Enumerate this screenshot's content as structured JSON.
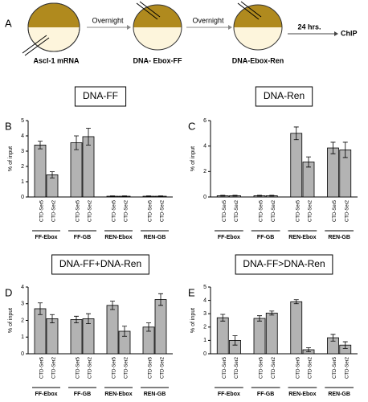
{
  "diagram": {
    "panel": "A",
    "injection": "Ascl-1 mRNA",
    "step1": "Overnight",
    "cell2": "DNA- Ebox-FF",
    "step2": "Overnight",
    "cell3": "DNA-Ebox-Ren",
    "step3": "24 hrs.",
    "result": "ChIP"
  },
  "chart_data": [
    {
      "type": "bar",
      "panel": "B",
      "title": "DNA-FF",
      "ylabel": "% of input",
      "color": "#b3b3b3",
      "groups": [
        "FF-Ebox",
        "FF-GB",
        "REN-Ebox",
        "REN-GB"
      ],
      "categories": [
        "CTD-Ser5",
        "CTD-Ser2",
        "CTD-Ser5",
        "CTD-Ser2",
        "CTD-Ser5",
        "CTD-Ser2",
        "CTD-Ser5",
        "CTD-Ser2"
      ],
      "values": [
        3.4,
        1.45,
        3.55,
        3.95,
        0.05,
        0.05,
        0.05,
        0.05
      ],
      "errors": [
        0.25,
        0.2,
        0.45,
        0.55,
        0.02,
        0.02,
        0.02,
        0.02
      ],
      "ylim": [
        0,
        5
      ],
      "yticks": [
        0,
        1,
        2,
        3,
        4,
        5
      ]
    },
    {
      "type": "bar",
      "panel": "C",
      "title": "DNA-Ren",
      "ylabel": "% of input",
      "color": "#b3b3b3",
      "groups": [
        "FF-Ebox",
        "FF-GB",
        "REN-Ebox",
        "REN-GB"
      ],
      "categories": [
        "CTD-Ser5",
        "CTD-Ser2",
        "CTD-Ser5",
        "CTD-Ser2",
        "CTD-Ser5",
        "CTD-Ser2",
        "CTD-Ser5",
        "CTD-Ser2"
      ],
      "values": [
        0.1,
        0.1,
        0.1,
        0.1,
        5.0,
        2.75,
        3.85,
        3.7
      ],
      "errors": [
        0.03,
        0.03,
        0.03,
        0.03,
        0.5,
        0.4,
        0.45,
        0.6
      ],
      "ylim": [
        0,
        6
      ],
      "yticks": [
        0,
        2,
        4,
        6
      ]
    },
    {
      "type": "bar",
      "panel": "D",
      "title": "DNA-FF+DNA-Ren",
      "ylabel": "% of input",
      "color": "#b3b3b3",
      "groups": [
        "FF-Ebox",
        "FF-GB",
        "REN-Ebox",
        "REN-GB"
      ],
      "categories": [
        "CTD-Ser5",
        "CTD-Ser2",
        "CTD-Ser5",
        "CTD-Ser2",
        "CTD-Ser5",
        "CTD-Ser2",
        "CTD-Ser5",
        "CTD-Ser2"
      ],
      "values": [
        2.7,
        2.1,
        2.05,
        2.1,
        2.9,
        1.35,
        1.6,
        3.25
      ],
      "errors": [
        0.35,
        0.25,
        0.2,
        0.3,
        0.25,
        0.3,
        0.25,
        0.35
      ],
      "ylim": [
        0,
        4
      ],
      "yticks": [
        0,
        1,
        2,
        3,
        4
      ]
    },
    {
      "type": "bar",
      "panel": "E",
      "title": "DNA-FF>DNA-Ren",
      "ylabel": "% of input",
      "color": "#b3b3b3",
      "groups": [
        "FF-Ebox",
        "FF-GB",
        "REN-Ebox",
        "REN-GB"
      ],
      "categories": [
        "CTD-Ser5",
        "CTD-Ser2",
        "CTD-Ser5",
        "CTD-Ser2",
        "CTD-Ser5",
        "CTD-Ser2",
        "CTD-Ser5",
        "CTD-Ser2"
      ],
      "values": [
        2.7,
        1.0,
        2.65,
        3.05,
        3.9,
        0.3,
        1.2,
        0.65
      ],
      "errors": [
        0.25,
        0.35,
        0.2,
        0.15,
        0.15,
        0.15,
        0.25,
        0.25
      ],
      "ylim": [
        0,
        5
      ],
      "yticks": [
        0,
        1,
        2,
        3,
        4,
        5
      ]
    }
  ]
}
